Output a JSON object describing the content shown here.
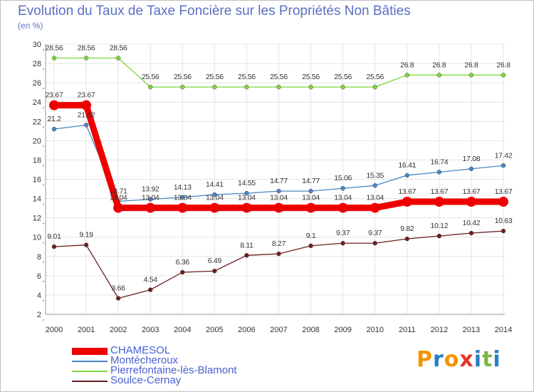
{
  "title": "Evolution du Taux de Taxe Foncière sur les Propriétés Non Bâties",
  "unit_label": "(en %)",
  "brand": {
    "text": "Proxiti",
    "letters": [
      "P",
      "r",
      "o",
      "x",
      "i",
      "t",
      "i"
    ],
    "colors": [
      "#f29400",
      "#2a7fc1",
      "#f29400",
      "#e3362b",
      "#2a7fc1",
      "#7ab648",
      "#2a7fc1"
    ]
  },
  "chart_data": {
    "type": "line",
    "title": "Evolution du Taux de Taxe Foncière sur les Propriétés Non Bâties",
    "ylabel": "(en %)",
    "xlabel": "",
    "ylim": [
      2,
      30
    ],
    "yticks": [
      2,
      4,
      6,
      8,
      10,
      12,
      14,
      16,
      18,
      20,
      22,
      24,
      26,
      28,
      30
    ],
    "categories": [
      "2000",
      "2001",
      "2002",
      "2003",
      "2004",
      "2005",
      "2006",
      "2007",
      "2008",
      "2009",
      "2010",
      "2011",
      "2012",
      "2013",
      "2014"
    ],
    "series": [
      {
        "name": "CHAMESOL",
        "color": "#ee0000",
        "thick": true,
        "values": [
          23.67,
          23.67,
          13.04,
          13.04,
          13.04,
          13.04,
          13.04,
          13.04,
          13.04,
          13.04,
          13.04,
          13.67,
          13.67,
          13.67,
          13.67
        ],
        "labels": [
          "23.67",
          "23.67",
          "13.04",
          "13.04",
          "13.04",
          "13.04",
          "13.04",
          "13.04",
          "13.04",
          "13.04",
          "13.04",
          "13.67",
          "13.67",
          "13.67",
          "13.67"
        ]
      },
      {
        "name": "Montécheroux",
        "color": "#4a86c6",
        "thick": false,
        "values": [
          21.2,
          21.62,
          13.71,
          13.92,
          14.13,
          14.41,
          14.55,
          14.77,
          14.77,
          15.06,
          15.35,
          16.41,
          16.74,
          17.08,
          17.42
        ],
        "labels": [
          "21.2",
          "21.62",
          "13.71",
          "13.92",
          "14.13",
          "14.41",
          "14.55",
          "14.77",
          "14.77",
          "15.06",
          "15.35",
          "16.41",
          "16.74",
          "17.08",
          "17.42"
        ]
      },
      {
        "name": "Pierrefontaine-lès-Blamont",
        "color": "#7dd63c",
        "thick": false,
        "values": [
          28.56,
          28.56,
          28.56,
          25.56,
          25.56,
          25.56,
          25.56,
          25.56,
          25.56,
          25.56,
          25.56,
          26.8,
          26.8,
          26.8,
          26.8
        ],
        "labels": [
          "28.56",
          "28.56",
          "28.56",
          "25.56",
          "25.56",
          "25.56",
          "25.56",
          "25.56",
          "25.56",
          "25.56",
          "25.56",
          "26.8",
          "26.8",
          "26.8",
          "26.8"
        ]
      },
      {
        "name": "Soulce-Cernay",
        "color": "#6b1f1f",
        "thick": false,
        "values": [
          9.01,
          9.19,
          3.66,
          4.54,
          6.36,
          6.49,
          8.11,
          8.27,
          9.1,
          9.37,
          9.37,
          9.82,
          10.12,
          10.42,
          10.63
        ],
        "labels": [
          "9.01",
          "9.19",
          "3.66",
          "4.54",
          "6.36",
          "6.49",
          "8.11",
          "8.27",
          "9.1",
          "9.37",
          "9.37",
          "9.82",
          "10.12",
          "10.42",
          "10.63"
        ]
      }
    ],
    "legend": [
      "CHAMESOL",
      "Montécheroux",
      "Pierrefontaine-lès-Blamont",
      "Soulce-Cernay"
    ]
  }
}
